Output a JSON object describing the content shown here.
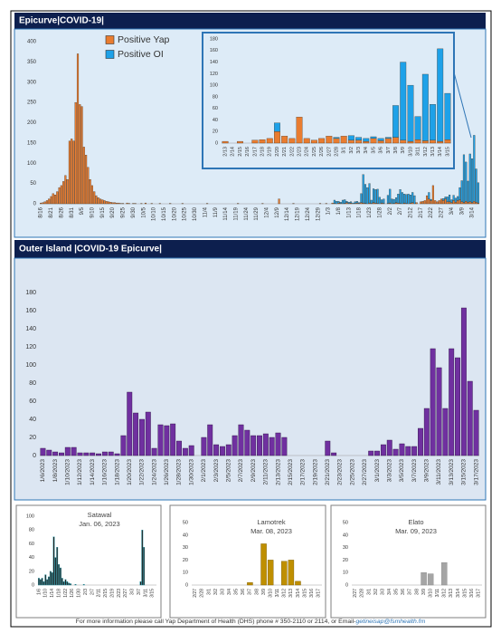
{
  "chart_data": [
    {
      "type": "bar",
      "title": "Epicurve|COVID-19|",
      "stacked": true,
      "legend": "top-left",
      "categories": [
        "8/16",
        null,
        null,
        null,
        null,
        "8/21",
        null,
        null,
        null,
        null,
        "8/26",
        null,
        null,
        null,
        null,
        "8/31",
        null,
        null,
        null,
        null,
        "9/5",
        null,
        null,
        null,
        null,
        "9/10",
        null,
        null,
        null,
        null,
        "9/15",
        null,
        null,
        null,
        null,
        "9/20",
        null,
        null,
        null,
        null,
        "9/25",
        null,
        null,
        null,
        null,
        "9/30",
        null,
        null,
        null,
        null,
        "10/5",
        null,
        null,
        null,
        null,
        "10/10",
        null,
        null,
        null,
        null,
        "10/15",
        null,
        null,
        null,
        null,
        "10/20",
        null,
        null,
        null,
        null,
        "10/25",
        null,
        null,
        null,
        null,
        "10/30",
        null,
        null,
        null,
        null,
        "11/4",
        null,
        null,
        null,
        null,
        "11/9",
        null,
        null,
        null,
        null,
        "11/14",
        null,
        null,
        null,
        null,
        "11/19",
        null,
        null,
        null,
        null,
        "11/24",
        null,
        null,
        null,
        null,
        "11/29",
        null,
        null,
        null,
        null,
        "12/4",
        null,
        null,
        null,
        null,
        "12/9",
        null,
        null,
        null,
        null,
        "12/14",
        null,
        null,
        null,
        null,
        "12/19",
        null,
        null,
        null,
        null,
        "12/24",
        null,
        null,
        null,
        null,
        "12/29",
        null,
        null,
        null,
        null,
        "1/3",
        null,
        null,
        null,
        null,
        "1/8",
        null,
        null,
        null,
        null,
        "1/13",
        null,
        null,
        null,
        null,
        "1/18",
        null,
        null,
        null,
        null,
        "1/23",
        null,
        null,
        null,
        null,
        "1/28",
        null,
        null,
        null,
        null,
        "2/2",
        null,
        null,
        null,
        null,
        "2/7",
        null,
        null,
        null,
        null,
        "2/12",
        null,
        null,
        null,
        null,
        "2/17",
        null,
        null,
        null,
        null,
        "2/22",
        null,
        null,
        null,
        null,
        "2/27",
        null,
        null,
        null,
        null,
        "3/4",
        null,
        null,
        null,
        null,
        "3/9",
        null,
        null,
        null,
        null,
        "3/14",
        null,
        null,
        null
      ],
      "series": [
        {
          "name": "Positive Yap",
          "color": "#e97c30",
          "values": [
            2,
            3,
            5,
            8,
            12,
            18,
            25,
            22,
            30,
            40,
            45,
            55,
            70,
            60,
            155,
            160,
            155,
            250,
            370,
            245,
            240,
            140,
            120,
            90,
            60,
            45,
            30,
            20,
            15,
            12,
            10,
            8,
            6,
            5,
            4,
            3,
            3,
            2,
            2,
            1,
            1,
            0,
            2,
            1,
            0,
            1,
            1,
            0,
            0,
            1,
            0,
            2,
            0,
            0,
            1,
            0,
            0,
            0,
            1,
            0,
            0,
            0,
            0,
            1,
            0,
            0,
            0,
            0,
            0,
            1,
            0,
            0,
            0,
            0,
            0,
            0,
            0,
            0,
            0,
            0,
            0,
            1,
            0,
            0,
            0,
            0,
            0,
            0,
            0,
            0,
            0,
            0,
            0,
            0,
            0,
            0,
            1,
            0,
            0,
            0,
            0,
            0,
            0,
            0,
            0,
            0,
            0,
            0,
            1,
            0,
            0,
            0,
            0,
            0,
            0,
            0,
            12,
            0,
            0,
            0,
            0,
            0,
            0,
            1,
            0,
            0,
            0,
            0,
            0,
            0,
            0,
            0,
            0,
            0,
            0,
            0,
            1,
            0,
            0,
            1,
            0,
            0,
            2,
            1,
            0,
            2,
            1,
            0,
            1,
            3,
            1,
            2,
            0,
            1,
            2,
            1,
            3,
            2,
            1,
            0,
            2,
            1,
            3,
            2,
            1,
            0,
            2,
            1,
            0,
            1,
            2,
            0,
            1,
            3,
            2,
            1,
            0,
            2,
            1,
            0,
            2,
            3,
            0,
            3,
            0,
            5,
            6,
            8,
            20,
            12,
            8,
            45,
            8,
            5,
            8,
            12,
            8,
            12,
            5,
            5,
            3,
            8,
            4,
            8,
            10,
            5,
            3,
            6,
            4,
            5,
            3,
            6,
            4,
            2
          ]
        },
        {
          "name": "Positive OI",
          "color": "#1ea1e8",
          "values": [
            0,
            0,
            0,
            0,
            0,
            0,
            0,
            0,
            0,
            0,
            0,
            0,
            0,
            0,
            0,
            0,
            0,
            0,
            0,
            0,
            0,
            0,
            0,
            0,
            0,
            0,
            0,
            0,
            0,
            0,
            0,
            0,
            0,
            0,
            0,
            0,
            0,
            0,
            0,
            0,
            0,
            0,
            0,
            0,
            0,
            0,
            0,
            0,
            0,
            0,
            0,
            0,
            0,
            0,
            0,
            0,
            0,
            0,
            0,
            0,
            0,
            0,
            0,
            0,
            0,
            0,
            0,
            0,
            0,
            0,
            0,
            0,
            0,
            0,
            0,
            0,
            0,
            0,
            0,
            0,
            0,
            0,
            0,
            0,
            0,
            0,
            0,
            0,
            0,
            0,
            0,
            0,
            0,
            0,
            0,
            0,
            0,
            0,
            0,
            0,
            0,
            0,
            0,
            0,
            0,
            0,
            0,
            0,
            0,
            0,
            0,
            0,
            0,
            0,
            0,
            0,
            0,
            0,
            0,
            0,
            0,
            0,
            0,
            0,
            0,
            0,
            0,
            0,
            0,
            0,
            0,
            0,
            0,
            0,
            0,
            0,
            0,
            0,
            0,
            0,
            0,
            0,
            0,
            8,
            6,
            4,
            3,
            9,
            9,
            3,
            3,
            3,
            2,
            4,
            4,
            2,
            22,
            70,
            47,
            40,
            48,
            8,
            34,
            33,
            35,
            16,
            8,
            11,
            0,
            20,
            34,
            12,
            10,
            12,
            22,
            34,
            28,
            22,
            22,
            24,
            20,
            25,
            20,
            0,
            0,
            0,
            0,
            0,
            0,
            16,
            3,
            0,
            0,
            0,
            0,
            0,
            5,
            5,
            12,
            17,
            7,
            13,
            10,
            10,
            30,
            52,
            118,
            97,
            52,
            118,
            108,
            163,
            82,
            50
          ]
        }
      ],
      "ylim": [
        0,
        400
      ],
      "yticks": [
        0,
        50,
        100,
        150,
        200,
        250,
        300,
        350,
        400
      ]
    },
    {
      "type": "bar",
      "stacked": true,
      "categories": [
        "2/13",
        "2/14",
        "2/15",
        "2/16",
        "2/17",
        "2/18",
        "2/19",
        "2/20",
        "2/21",
        "2/22",
        "2/23",
        "2/24",
        "2/25",
        "2/26",
        "2/27",
        "2/28",
        "3/1",
        "3/2",
        "3/3",
        "3/4",
        "3/5",
        "3/6",
        "3/7",
        "3/8",
        "3/9",
        "3/10",
        "3/11",
        "3/12",
        "3/13",
        "3/14",
        "3/15"
      ],
      "series": [
        {
          "name": "Positive Yap",
          "color": "#e97c30",
          "values": [
            3,
            0,
            3,
            0,
            5,
            6,
            8,
            20,
            12,
            8,
            45,
            8,
            5,
            8,
            12,
            8,
            12,
            5,
            5,
            3,
            8,
            4,
            8,
            10,
            5,
            3,
            6,
            4,
            5,
            3,
            6
          ]
        },
        {
          "name": "Positive OI",
          "color": "#1ea1e8",
          "values": [
            0,
            0,
            0,
            0,
            0,
            0,
            0,
            15,
            0,
            0,
            0,
            0,
            0,
            0,
            0,
            2,
            0,
            8,
            5,
            5,
            3,
            4,
            2,
            55,
            135,
            97,
            40,
            115,
            62,
            160,
            80
          ]
        }
      ],
      "ylim": [
        0,
        180
      ],
      "yticks": [
        0,
        20,
        40,
        60,
        80,
        100,
        120,
        140,
        160,
        180
      ]
    },
    {
      "type": "bar",
      "title": "Outer Island |COVID-19 Epicurve|",
      "categories": [
        "1/6/2023",
        null,
        "1/8/2023",
        null,
        "1/10/2023",
        null,
        "1/12/2023",
        null,
        "1/14/2023",
        null,
        "1/16/2023",
        null,
        "1/18/2023",
        null,
        "1/20/2023",
        null,
        "1/22/2023",
        null,
        "1/24/2023",
        null,
        "1/26/2023",
        null,
        "1/28/2023",
        null,
        "1/30/2023",
        null,
        "2/1/2023",
        null,
        "2/3/2023",
        null,
        "2/5/2023",
        null,
        "2/7/2023",
        null,
        "2/9/2023",
        null,
        "2/11/2023",
        null,
        "2/13/2023",
        null,
        "2/15/2023",
        null,
        "2/17/2023",
        null,
        "2/19/2023",
        null,
        "2/21/2023",
        null,
        "2/23/2023",
        null,
        "2/25/2023",
        null,
        "2/27/2023",
        null,
        "3/1/2023",
        null,
        "3/3/2023",
        null,
        "3/5/2023",
        null,
        "3/7/2023",
        null,
        "3/9/2023",
        null,
        "3/11/2023",
        null,
        "3/13/2023",
        null,
        "3/15/2023",
        null,
        "3/17/2023"
      ],
      "values": [
        8,
        6,
        4,
        3,
        9,
        9,
        3,
        3,
        3,
        2,
        4,
        4,
        2,
        22,
        70,
        47,
        40,
        48,
        8,
        34,
        33,
        35,
        16,
        8,
        11,
        0,
        20,
        34,
        12,
        10,
        12,
        22,
        34,
        28,
        22,
        22,
        24,
        20,
        25,
        20,
        0,
        0,
        0,
        0,
        0,
        0,
        16,
        3,
        0,
        0,
        0,
        0,
        0,
        5,
        5,
        12,
        17,
        7,
        13,
        10,
        10,
        30,
        52,
        118,
        97,
        52,
        118,
        108,
        163,
        82,
        50
      ],
      "color": "#7030a0",
      "ylim": [
        0,
        180
      ],
      "yticks": [
        0,
        20,
        40,
        60,
        80,
        100,
        120,
        140,
        160,
        180
      ]
    },
    {
      "type": "bar",
      "title": "Satawal",
      "subtitle": "Jan. 06, 2023",
      "categories": [
        "1/6",
        null,
        null,
        null,
        "1/10",
        null,
        null,
        null,
        "1/14",
        null,
        null,
        null,
        "1/18",
        null,
        null,
        null,
        "1/22",
        null,
        null,
        null,
        "1/26",
        null,
        null,
        null,
        "1/30",
        null,
        null,
        null,
        "2/3",
        null,
        null,
        null,
        "2/7",
        null,
        null,
        null,
        "2/11",
        null,
        null,
        null,
        "2/15",
        null,
        null,
        null,
        "2/19",
        null,
        null,
        null,
        "2/23",
        null,
        null,
        null,
        "2/27",
        null,
        null,
        null,
        "3/3",
        null,
        null,
        null,
        "3/7",
        null,
        null,
        null,
        "3/11",
        null,
        null,
        null,
        "3/15",
        null,
        null
      ],
      "values": [
        10,
        8,
        10,
        5,
        15,
        8,
        12,
        20,
        18,
        70,
        40,
        55,
        30,
        25,
        10,
        5,
        8,
        5,
        3,
        2,
        0,
        0,
        1,
        0,
        0,
        0,
        0,
        1,
        0,
        0,
        0,
        0,
        0,
        0,
        0,
        0,
        0,
        0,
        0,
        0,
        0,
        0,
        0,
        0,
        0,
        0,
        0,
        0,
        0,
        0,
        0,
        0,
        0,
        0,
        0,
        0,
        0,
        0,
        0,
        0,
        0,
        5,
        80,
        55,
        0,
        0,
        0,
        0,
        0,
        0,
        0
      ],
      "color": "#1f1f1f",
      "ylim": [
        0,
        100
      ],
      "yticks": [
        0,
        20,
        40,
        60,
        80,
        100
      ]
    },
    {
      "type": "bar",
      "title": "Lamotrek",
      "subtitle": "Mar. 08, 2023",
      "categories": [
        "2/27",
        "2/28",
        "3/1",
        "3/2",
        "3/3",
        "3/4",
        "3/5",
        "3/6",
        "3/7",
        "3/8",
        "3/9",
        "3/10",
        "3/11",
        "3/12",
        "3/13",
        "3/14",
        "3/15",
        "3/16",
        "3/17"
      ],
      "values": [
        0,
        0,
        0,
        0,
        0,
        0,
        0,
        0,
        2,
        0,
        33,
        20,
        0,
        19,
        20,
        3,
        0,
        0,
        0
      ],
      "color": "#bf8f00",
      "ylim": [
        0,
        50
      ],
      "yticks": [
        0,
        10,
        20,
        30,
        40,
        50
      ]
    },
    {
      "type": "bar",
      "title": "Elato",
      "subtitle": "Mar. 09, 2023",
      "categories": [
        "2/27",
        "2/28",
        "3/1",
        "3/2",
        "3/3",
        "3/4",
        "3/5",
        "3/6",
        "3/7",
        "3/8",
        "3/9",
        "3/10",
        "3/11",
        "3/12",
        "3/13",
        "3/14",
        "3/15",
        "3/16",
        "3/17"
      ],
      "values": [
        0,
        0,
        0,
        0,
        0,
        0,
        0,
        0,
        0,
        0,
        10,
        9,
        0,
        18,
        0,
        0,
        0,
        0,
        0
      ],
      "color": "#a5a5a5",
      "ylim": [
        0,
        50
      ],
      "yticks": [
        0,
        10,
        20,
        30,
        40,
        50
      ]
    }
  ],
  "footer": {
    "text": "For more information please call Yap Department of Health (DHS) phone # 350-2110 or 2114, or Email-",
    "email": "getineisap@fsmhealth.fm"
  }
}
